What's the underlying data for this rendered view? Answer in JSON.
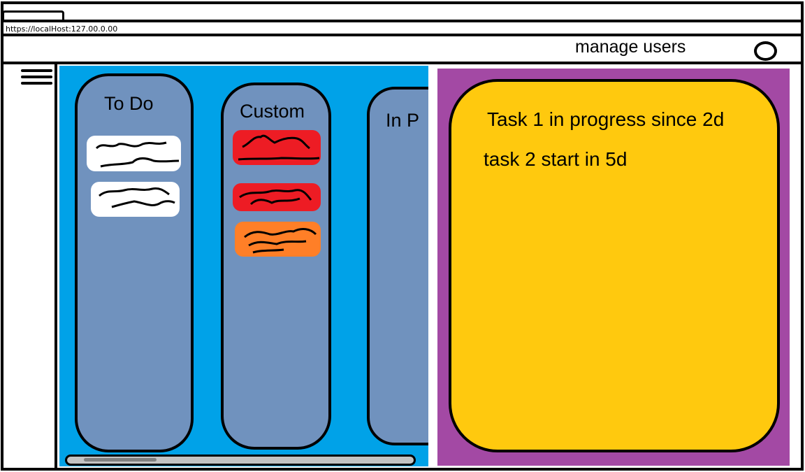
{
  "browser": {
    "url": "https://localHost:127.00.0.00"
  },
  "header": {
    "title": "manage users",
    "profile_icon": "profile-icon"
  },
  "sidebar": {
    "menu_icon": "hamburger-menu-icon"
  },
  "board": {
    "columns": [
      {
        "title": "To Do",
        "cards": [
          {
            "color": "#ffffff"
          },
          {
            "color": "#ffffff"
          }
        ]
      },
      {
        "title": "Custom",
        "cards": [
          {
            "color": "#ed1c24"
          },
          {
            "color": "#ed1c24"
          },
          {
            "color": "#ff7f27"
          }
        ]
      },
      {
        "title": "In P",
        "cards": []
      }
    ]
  },
  "detail": {
    "lines": [
      "Task 1 in progress since 2d",
      "task 2 start in 5d"
    ]
  },
  "colors": {
    "board_bg": "#00a2e8",
    "column_bg": "#7092be",
    "panel_bg": "#a349a4",
    "detail_card_bg": "#ffc90e"
  }
}
